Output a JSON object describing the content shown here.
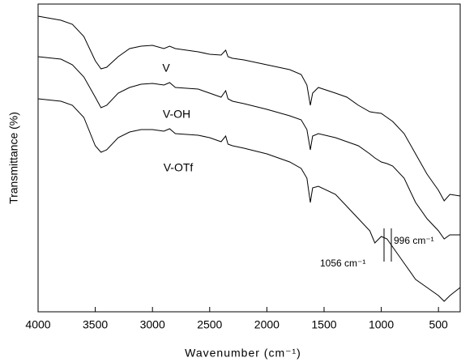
{
  "chart_data": {
    "type": "line",
    "xlabel": "Wavenumber (cm⁻¹)",
    "ylabel": "Transmittance (%)",
    "annotations": [
      "V",
      "V-OH",
      "V-OTf",
      "996 cm⁻¹",
      "1056 cm⁻¹"
    ],
    "x": [
      4000,
      3800,
      3700,
      3600,
      3500,
      3450,
      3400,
      3300,
      3200,
      3100,
      3000,
      2900,
      2850,
      2800,
      2700,
      2600,
      2500,
      2400,
      2360,
      2340,
      2300,
      2200,
      2000,
      1800,
      1700,
      1650,
      1620,
      1600,
      1550,
      1400,
      1300,
      1200,
      1100,
      1056,
      1000,
      950,
      900,
      800,
      700,
      600,
      500,
      450,
      400,
      310
    ],
    "series": [
      {
        "name": "V",
        "color": "#000000",
        "values": [
          365,
          360,
          355,
          340,
          310,
          300,
          302,
          315,
          325,
          328,
          329,
          325,
          328,
          325,
          323,
          321,
          318,
          317,
          323,
          315,
          313,
          311,
          305,
          299,
          293,
          280,
          255,
          270,
          277,
          270,
          265,
          255,
          247,
          246,
          245,
          240,
          235,
          220,
          195,
          170,
          150,
          137,
          145,
          143
        ]
      },
      {
        "name": "V-OH",
        "color": "#000000",
        "values": [
          315,
          312,
          305,
          290,
          265,
          252,
          255,
          270,
          277,
          281,
          282,
          280,
          283,
          277,
          276,
          275,
          270,
          265,
          273,
          263,
          260,
          257,
          250,
          242,
          237,
          225,
          200,
          217,
          220,
          215,
          210,
          205,
          195,
          190,
          185,
          183,
          180,
          165,
          135,
          115,
          100,
          90,
          95,
          95
        ]
      },
      {
        "name": "V-OTf",
        "color": "#000000",
        "values": [
          263,
          260,
          255,
          240,
          205,
          197,
          200,
          215,
          222,
          225,
          225,
          223,
          226,
          220,
          219,
          218,
          215,
          210,
          217,
          207,
          205,
          202,
          195,
          185,
          177,
          165,
          135,
          153,
          155,
          145,
          130,
          115,
          100,
          85,
          93,
          90,
          80,
          60,
          40,
          30,
          20,
          13,
          20,
          30
        ]
      }
    ],
    "xlim": [
      4000,
      310
    ],
    "xticks": [
      4000,
      3500,
      3000,
      2500,
      2000,
      1500,
      1000,
      500
    ],
    "ylim": [
      0,
      380
    ]
  }
}
